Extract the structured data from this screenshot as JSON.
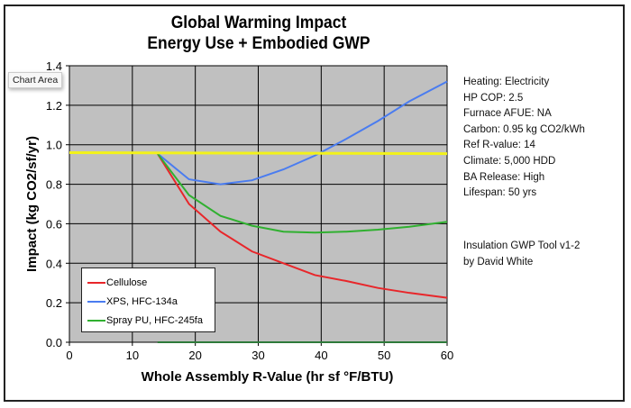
{
  "chart_data": {
    "type": "line",
    "title": [
      "Global Warming Impact",
      "Energy Use + Embodied GWP"
    ],
    "xlabel": "Whole Assembly R-Value (hr sf °F/BTU)",
    "ylabel": "Impact  (kg CO2/sf/yr)",
    "xlim": [
      0,
      60
    ],
    "ylim": [
      0,
      1.4
    ],
    "xticks": [
      "0",
      "10",
      "20",
      "30",
      "40",
      "50",
      "60"
    ],
    "yticks": [
      "0.0",
      "0.2",
      "0.4",
      "0.6",
      "0.8",
      "1.0",
      "1.2",
      "1.4"
    ],
    "grid": true,
    "legend_position": "bottom-left",
    "series": [
      {
        "name": "Cellulose",
        "color": "#e8262a",
        "x": [
          14,
          19,
          24,
          29,
          34,
          39,
          44,
          49,
          54,
          60
        ],
        "y": [
          0.955,
          0.7,
          0.56,
          0.46,
          0.4,
          0.34,
          0.31,
          0.275,
          0.25,
          0.225
        ]
      },
      {
        "name": "XPS, HFC-134a",
        "color": "#4a7cf0",
        "x": [
          14,
          19,
          24,
          29,
          34,
          39,
          44,
          49,
          54,
          60
        ],
        "y": [
          0.955,
          0.825,
          0.8,
          0.82,
          0.875,
          0.945,
          1.03,
          1.12,
          1.22,
          1.32
        ]
      },
      {
        "name": "Spray PU, HFC-245fa",
        "color": "#30b030",
        "x": [
          14,
          19,
          24,
          29,
          34,
          39,
          44,
          49,
          54,
          60
        ],
        "y": [
          0.955,
          0.745,
          0.64,
          0.59,
          0.56,
          0.555,
          0.56,
          0.57,
          0.585,
          0.61
        ]
      },
      {
        "color": "#f2f21a",
        "x": [
          0,
          60
        ],
        "y": [
          0.96,
          0.955
        ]
      },
      {
        "color": "#2e7a3a",
        "x": [
          14,
          60
        ],
        "y": [
          0.0,
          0.0
        ]
      }
    ]
  },
  "tooltip": "Chart Area",
  "info": [
    "Heating:  Electricity",
    "HP COP:  2.5",
    "Furnace AFUE:  NA",
    "Carbon:  0.95 kg CO2/kWh",
    "Ref R-value:  14",
    "Climate:  5,000 HDD",
    "BA Release:  High",
    "Lifespan:  50 yrs"
  ],
  "credit": [
    "Insulation GWP Tool v1-2",
    "by David White"
  ],
  "colors": {
    "plot_background": "#c0c0c0",
    "grid": "#000000"
  }
}
